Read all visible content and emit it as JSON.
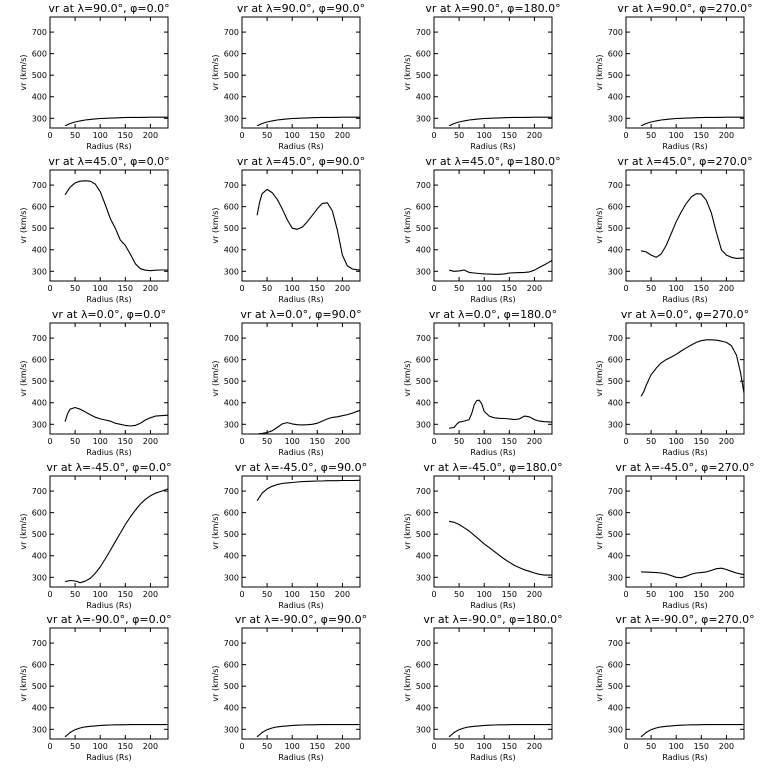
{
  "figure": {
    "xlabel": "Radius (Rs)",
    "ylabel": "v r (km/s)",
    "xlim": [
      0,
      235
    ],
    "ylim": [
      255,
      770
    ],
    "xticks": [
      0,
      50,
      100,
      150,
      200
    ],
    "yticks": [
      300,
      400,
      500,
      600,
      700
    ]
  },
  "chart_data": [
    {
      "type": "line",
      "title": "vr at λ=90.0°, φ=0.0°",
      "xlabel": "Radius (Rs)",
      "ylabel": "vr (km/s)",
      "x": [
        30,
        40,
        50,
        60,
        70,
        80,
        90,
        100,
        110,
        120,
        130,
        140,
        160,
        180,
        200,
        220,
        235
      ],
      "y": [
        265,
        276,
        283,
        288,
        292,
        295,
        297,
        299,
        300,
        301,
        302,
        303,
        304,
        304,
        305,
        305,
        305
      ]
    },
    {
      "type": "line",
      "title": "vr at λ=90.0°, φ=90.0°",
      "xlabel": "Radius (Rs)",
      "ylabel": "vr (km/s)",
      "x": [
        30,
        40,
        50,
        60,
        70,
        80,
        90,
        100,
        110,
        120,
        130,
        140,
        160,
        180,
        200,
        220,
        235
      ],
      "y": [
        265,
        276,
        283,
        288,
        292,
        295,
        297,
        299,
        300,
        301,
        302,
        303,
        304,
        304,
        305,
        305,
        305
      ]
    },
    {
      "type": "line",
      "title": "vr at λ=90.0°, φ=180.0°",
      "xlabel": "Radius (Rs)",
      "ylabel": "vr (km/s)",
      "x": [
        30,
        40,
        50,
        60,
        70,
        80,
        90,
        100,
        110,
        120,
        130,
        140,
        160,
        180,
        200,
        220,
        235
      ],
      "y": [
        265,
        276,
        283,
        288,
        292,
        295,
        297,
        299,
        300,
        301,
        302,
        303,
        304,
        304,
        305,
        305,
        305
      ]
    },
    {
      "type": "line",
      "title": "vr at λ=90.0°, φ=270.0°",
      "xlabel": "Radius (Rs)",
      "ylabel": "vr (km/s)",
      "x": [
        30,
        40,
        50,
        60,
        70,
        80,
        90,
        100,
        110,
        120,
        130,
        140,
        160,
        180,
        200,
        220,
        235
      ],
      "y": [
        265,
        276,
        283,
        288,
        292,
        295,
        297,
        299,
        300,
        301,
        302,
        303,
        304,
        304,
        305,
        305,
        305
      ]
    },
    {
      "type": "line",
      "title": "vr at λ=45.0°, φ=0.0°",
      "xlabel": "Radius (Rs)",
      "ylabel": "vr (km/s)",
      "x": [
        30,
        40,
        50,
        60,
        70,
        80,
        90,
        100,
        110,
        120,
        130,
        140,
        150,
        160,
        170,
        180,
        190,
        200,
        210,
        220,
        235
      ],
      "y": [
        655,
        690,
        710,
        718,
        720,
        718,
        705,
        670,
        610,
        545,
        500,
        445,
        420,
        380,
        335,
        312,
        305,
        303,
        305,
        306,
        306
      ]
    },
    {
      "type": "line",
      "title": "vr at λ=45.0°, φ=90.0°",
      "xlabel": "Radius (Rs)",
      "ylabel": "vr (km/s)",
      "x": [
        30,
        35,
        40,
        50,
        60,
        70,
        80,
        90,
        100,
        110,
        120,
        130,
        140,
        150,
        160,
        170,
        180,
        190,
        200,
        210,
        220,
        235
      ],
      "y": [
        560,
        620,
        660,
        680,
        665,
        635,
        590,
        540,
        500,
        495,
        505,
        530,
        560,
        590,
        615,
        618,
        580,
        490,
        375,
        325,
        310,
        305
      ]
    },
    {
      "type": "line",
      "title": "vr at λ=45.0°, φ=180.0°",
      "xlabel": "Radius (Rs)",
      "ylabel": "vr (km/s)",
      "x": [
        30,
        40,
        50,
        60,
        70,
        80,
        90,
        100,
        110,
        120,
        130,
        140,
        150,
        160,
        170,
        180,
        190,
        200,
        210,
        220,
        235
      ],
      "y": [
        305,
        300,
        302,
        306,
        295,
        292,
        290,
        288,
        287,
        286,
        286,
        288,
        292,
        293,
        294,
        295,
        297,
        305,
        318,
        330,
        350
      ]
    },
    {
      "type": "line",
      "title": "vr at λ=45.0°, φ=270.0°",
      "xlabel": "Radius (Rs)",
      "ylabel": "vr (km/s)",
      "x": [
        30,
        40,
        50,
        60,
        70,
        80,
        90,
        100,
        110,
        120,
        130,
        140,
        150,
        160,
        170,
        180,
        190,
        200,
        210,
        220,
        235
      ],
      "y": [
        395,
        390,
        375,
        365,
        380,
        420,
        475,
        530,
        575,
        615,
        645,
        660,
        658,
        630,
        570,
        480,
        400,
        375,
        365,
        360,
        362
      ]
    },
    {
      "type": "line",
      "title": "vr at λ=0.0°, φ=0.0°",
      "xlabel": "Radius (Rs)",
      "ylabel": "vr (km/s)",
      "x": [
        30,
        35,
        40,
        50,
        60,
        70,
        80,
        90,
        100,
        110,
        120,
        130,
        140,
        150,
        160,
        170,
        180,
        190,
        200,
        210,
        220,
        235
      ],
      "y": [
        312,
        350,
        370,
        378,
        370,
        358,
        345,
        333,
        325,
        320,
        315,
        305,
        300,
        295,
        292,
        295,
        305,
        320,
        330,
        338,
        340,
        342
      ]
    },
    {
      "type": "line",
      "title": "vr at λ=0.0°, φ=90.0°",
      "xlabel": "Radius (Rs)",
      "ylabel": "vr (km/s)",
      "x": [
        30,
        40,
        50,
        60,
        70,
        80,
        90,
        100,
        110,
        120,
        130,
        140,
        150,
        160,
        170,
        180,
        190,
        200,
        210,
        220,
        235
      ],
      "y": [
        255,
        258,
        262,
        270,
        285,
        302,
        308,
        302,
        298,
        297,
        298,
        300,
        305,
        315,
        325,
        332,
        335,
        340,
        345,
        352,
        365
      ]
    },
    {
      "type": "line",
      "title": "vr at λ=0.0°, φ=180.0°",
      "xlabel": "Radius (Rs)",
      "ylabel": "vr (km/s)",
      "x": [
        30,
        40,
        45,
        50,
        55,
        60,
        70,
        75,
        80,
        85,
        90,
        95,
        100,
        110,
        120,
        130,
        140,
        150,
        160,
        170,
        180,
        190,
        200,
        210,
        220,
        235
      ],
      "y": [
        282,
        285,
        300,
        310,
        312,
        315,
        322,
        350,
        390,
        410,
        412,
        395,
        360,
        338,
        330,
        328,
        327,
        325,
        322,
        325,
        338,
        335,
        322,
        315,
        312,
        310
      ]
    },
    {
      "type": "line",
      "title": "vr at λ=0.0°, φ=270.0°",
      "xlabel": "Radius (Rs)",
      "ylabel": "vr (km/s)",
      "x": [
        30,
        35,
        40,
        50,
        60,
        70,
        80,
        90,
        100,
        110,
        120,
        130,
        140,
        150,
        160,
        170,
        180,
        190,
        200,
        210,
        220,
        228,
        235
      ],
      "y": [
        430,
        450,
        480,
        530,
        560,
        585,
        600,
        612,
        625,
        640,
        655,
        668,
        680,
        688,
        692,
        692,
        690,
        686,
        680,
        665,
        620,
        540,
        445
      ]
    },
    {
      "type": "line",
      "title": "vr at λ=-45.0°, φ=0.0°",
      "xlabel": "Radius (Rs)",
      "ylabel": "vr (km/s)",
      "x": [
        30,
        40,
        50,
        55,
        60,
        70,
        80,
        90,
        100,
        110,
        120,
        130,
        140,
        150,
        160,
        170,
        180,
        190,
        200,
        210,
        220,
        235
      ],
      "y": [
        280,
        285,
        283,
        280,
        275,
        282,
        295,
        318,
        348,
        385,
        425,
        465,
        505,
        545,
        580,
        612,
        640,
        662,
        678,
        690,
        698,
        710
      ]
    },
    {
      "type": "line",
      "title": "vr at λ=-45.0°, φ=90.0°",
      "xlabel": "Radius (Rs)",
      "ylabel": "vr (km/s)",
      "x": [
        30,
        40,
        50,
        60,
        70,
        80,
        90,
        100,
        110,
        120,
        130,
        140,
        150,
        160,
        170,
        180,
        190,
        200,
        210,
        220,
        235
      ],
      "y": [
        655,
        690,
        710,
        722,
        730,
        735,
        738,
        740,
        742,
        744,
        745,
        746,
        747,
        747,
        748,
        748,
        748,
        749,
        749,
        749,
        750
      ]
    },
    {
      "type": "line",
      "title": "vr at λ=-45.0°, φ=180.0°",
      "xlabel": "Radius (Rs)",
      "ylabel": "vr (km/s)",
      "x": [
        30,
        40,
        50,
        60,
        70,
        80,
        90,
        100,
        110,
        120,
        130,
        140,
        150,
        160,
        170,
        180,
        190,
        200,
        210,
        220,
        235
      ],
      "y": [
        560,
        555,
        545,
        530,
        515,
        495,
        475,
        455,
        438,
        420,
        402,
        385,
        370,
        355,
        345,
        335,
        328,
        320,
        314,
        310,
        310
      ]
    },
    {
      "type": "line",
      "title": "vr at λ=-45.0°, φ=270.0°",
      "xlabel": "Radius (Rs)",
      "ylabel": "vr (km/s)",
      "x": [
        30,
        40,
        50,
        60,
        70,
        80,
        90,
        100,
        110,
        120,
        130,
        140,
        150,
        160,
        170,
        180,
        190,
        200,
        210,
        220,
        235
      ],
      "y": [
        325,
        324,
        323,
        322,
        320,
        316,
        308,
        300,
        298,
        305,
        315,
        320,
        322,
        325,
        332,
        340,
        342,
        336,
        328,
        320,
        312
      ]
    },
    {
      "type": "line",
      "title": "vr at λ=-90.0°, φ=0.0°",
      "xlabel": "Radius (Rs)",
      "ylabel": "vr (km/s)",
      "x": [
        30,
        40,
        50,
        60,
        70,
        80,
        90,
        100,
        110,
        120,
        130,
        140,
        160,
        180,
        200,
        220,
        235
      ],
      "y": [
        265,
        285,
        298,
        306,
        311,
        314,
        316,
        318,
        319,
        320,
        321,
        321,
        322,
        322,
        322,
        322,
        322
      ]
    },
    {
      "type": "line",
      "title": "vr at λ=-90.0°, φ=90.0°",
      "xlabel": "Radius (Rs)",
      "ylabel": "vr (km/s)",
      "x": [
        30,
        40,
        50,
        60,
        70,
        80,
        90,
        100,
        110,
        120,
        130,
        140,
        160,
        180,
        200,
        220,
        235
      ],
      "y": [
        265,
        285,
        298,
        306,
        311,
        314,
        316,
        318,
        319,
        320,
        321,
        321,
        322,
        322,
        322,
        322,
        322
      ]
    },
    {
      "type": "line",
      "title": "vr at λ=-90.0°, φ=180.0°",
      "xlabel": "Radius (Rs)",
      "ylabel": "vr (km/s)",
      "x": [
        30,
        40,
        50,
        60,
        70,
        80,
        90,
        100,
        110,
        120,
        130,
        140,
        160,
        180,
        200,
        220,
        235
      ],
      "y": [
        265,
        285,
        298,
        306,
        311,
        314,
        316,
        318,
        319,
        320,
        321,
        321,
        322,
        322,
        322,
        322,
        322
      ]
    },
    {
      "type": "line",
      "title": "vr at λ=-90.0°, φ=270.0°",
      "xlabel": "Radius (Rs)",
      "ylabel": "vr (km/s)",
      "x": [
        30,
        40,
        50,
        60,
        70,
        80,
        90,
        100,
        110,
        120,
        130,
        140,
        160,
        180,
        200,
        220,
        235
      ],
      "y": [
        265,
        285,
        298,
        306,
        311,
        314,
        316,
        318,
        319,
        320,
        321,
        321,
        322,
        322,
        322,
        322,
        322
      ]
    }
  ]
}
